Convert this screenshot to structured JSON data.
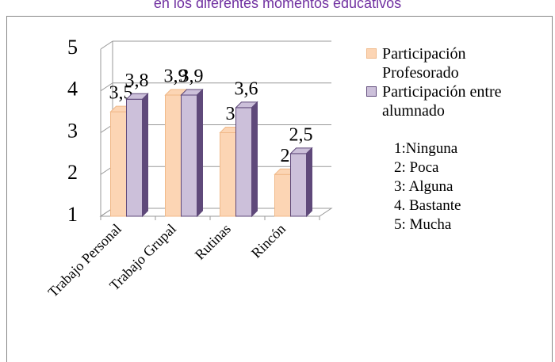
{
  "chart_data": {
    "type": "bar3d",
    "title": "en los diferentes momentos educativos",
    "categories": [
      "Trabajo Personal",
      "Trabajo Grupal",
      "Rutinas",
      "Rincón"
    ],
    "series": [
      {
        "name": "Participación Profesorado",
        "color": "#fcd5b4",
        "edge": "#f0b989",
        "values": [
          3.5,
          3.9,
          3,
          2
        ],
        "value_labels": [
          "3,5",
          "3,9",
          "3",
          "2"
        ]
      },
      {
        "name": "Participación entre alumnado",
        "color": "#ccc0da",
        "edge": "#5f497a",
        "values": [
          3.8,
          3.9,
          3.6,
          2.5
        ],
        "value_labels": [
          "3,8",
          "3,9",
          "3,6",
          "2,5"
        ]
      }
    ],
    "ylim": [
      1,
      5
    ],
    "yticks": [
      1,
      2,
      3,
      4,
      5
    ],
    "grid": true,
    "legend_position": "right",
    "annotations": [
      "1:Ninguna",
      "2: Poca",
      "3: Alguna",
      "4. Bastante",
      "5: Mucha"
    ]
  }
}
